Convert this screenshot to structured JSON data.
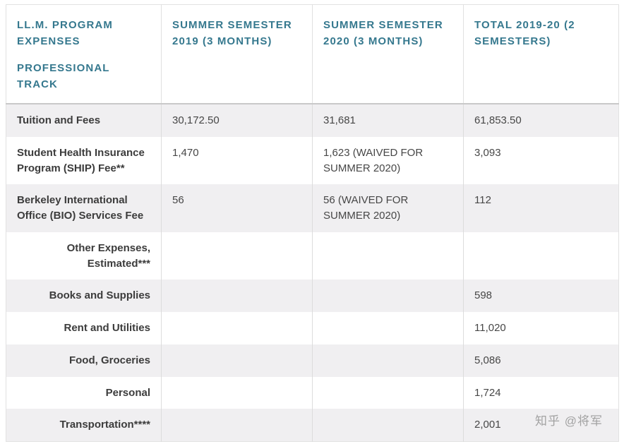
{
  "page": {
    "watermark": "知乎 @将军"
  },
  "table": {
    "headers": {
      "col1_line1": "LL.M. PROGRAM EXPENSES",
      "col1_line2": "PROFESSIONAL TRACK",
      "col2": "SUMMER SEMESTER 2019 (3 MONTHS)",
      "col3": "SUMMER SEMESTER 2020 (3 MONTHS)",
      "col4": "TOTAL 2019-20 (2 SEMESTERS)"
    },
    "rows": [
      {
        "label": "Tuition and Fees",
        "y2019": "30,172.50",
        "y2020": "31,681",
        "total": "61,853.50"
      },
      {
        "label": "Student Health Insurance Program (SHIP) Fee**",
        "y2019": "1,470",
        "y2020": "1,623 (WAIVED FOR SUMMER 2020)",
        "total": "3,093"
      },
      {
        "label": "Berkeley International Office (BIO) Services Fee",
        "y2019": "56",
        "y2020": "56 (WAIVED FOR SUMMER 2020)",
        "total": "112"
      },
      {
        "label": "Other Expenses, Estimated***",
        "y2019": "",
        "y2020": "",
        "total": ""
      },
      {
        "label": "Books and Supplies",
        "y2019": "",
        "y2020": "",
        "total": "598"
      },
      {
        "label": "Rent and Utilities",
        "y2019": "",
        "y2020": "",
        "total": "11,020"
      },
      {
        "label": "Food, Groceries",
        "y2019": "",
        "y2020": "",
        "total": "5,086"
      },
      {
        "label": "Personal",
        "y2019": "",
        "y2020": "",
        "total": "1,724"
      },
      {
        "label": "Transportation****",
        "y2019": "",
        "y2020": "",
        "total": "2,001"
      }
    ],
    "colors": {
      "header_text": "#35788e",
      "row_alt_bg": "#f0eff1",
      "label_text": "#3c3c3c",
      "value_text": "#474747"
    }
  }
}
